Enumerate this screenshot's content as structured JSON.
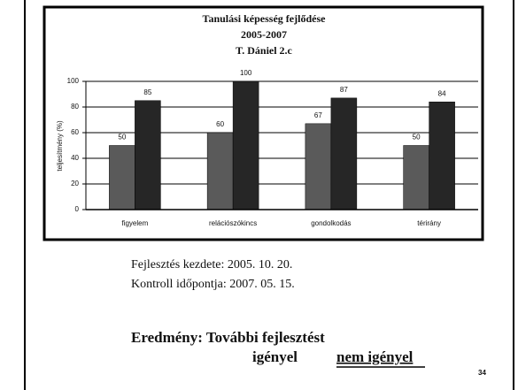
{
  "chart_data": {
    "type": "bar",
    "title": [
      "Tanulási képesség fejlődése",
      "2005-2007",
      "T. Dániel 2.c"
    ],
    "y_label": "teljesítmény (%)",
    "categories": [
      "figyelem",
      "relációszókincs",
      "gondolkodás",
      "térirány"
    ],
    "series": [
      {
        "color": "#5a5a5a",
        "values": [
          50,
          60,
          67,
          50
        ]
      },
      {
        "color": "#262626",
        "values": [
          85,
          100,
          87,
          84
        ]
      }
    ],
    "ylim": [
      0,
      100
    ],
    "yticks": [
      0,
      20,
      40,
      60,
      80,
      100
    ],
    "grid": true
  },
  "document": {
    "lines": [
      "Fejlesztés kezdete: 2005. 10. 20.",
      "Kontroll időpontja: 2007. 05. 15."
    ],
    "result": "Eredmény: További fejlesztést",
    "options": [
      "igényel",
      "nem igényel"
    ],
    "page_number": "34"
  }
}
